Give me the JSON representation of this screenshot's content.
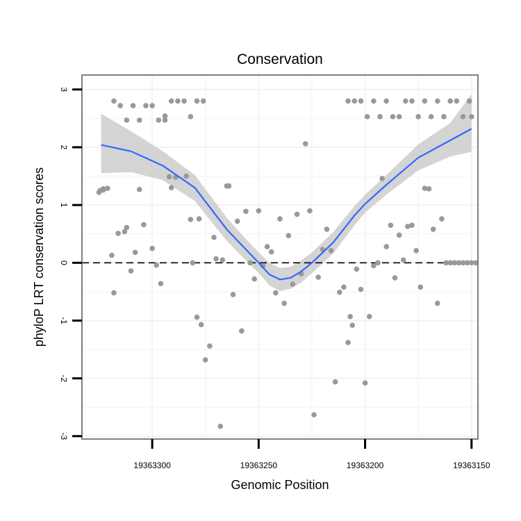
{
  "chart_data": {
    "type": "scatter",
    "title": "Conservation",
    "xlabel": "Genomic Position",
    "ylabel": "phyloP LRT conservation scores",
    "x_reversed": true,
    "xlim": [
      19363333,
      19363147
    ],
    "ylim": [
      -3.05,
      3.25
    ],
    "xticks": [
      19363300,
      19363250,
      19363200,
      19363150
    ],
    "yticks": [
      -3,
      -2,
      -1,
      0,
      1,
      2,
      3
    ],
    "grid": true,
    "reference_line": {
      "y": 0,
      "style": "dashed",
      "color": "#000000"
    },
    "colors": {
      "points": "#999999",
      "smooth": "#3366FF",
      "ribbon": "#CCCCCC",
      "panel_border": "#7F7F7F",
      "grid": "#F2F2F2"
    },
    "series": [
      {
        "name": "scores",
        "kind": "points",
        "x": [
          19363324.5,
          19363325,
          19363323,
          19363321,
          19363323,
          19363318,
          19363319,
          19363316,
          19363312,
          19363313,
          19363310,
          19363308,
          19363306,
          19363304,
          19363300,
          19363298,
          19363296,
          19363294,
          19363292,
          19363291,
          19363289,
          19363284,
          19363282,
          19363281,
          19363279,
          19363278,
          19363277,
          19363275,
          19363273,
          19363271,
          19363270,
          19363268,
          19363267,
          19363265,
          19363264,
          19363262,
          19363260,
          19363258,
          19363256,
          19363254,
          19363252,
          19363250,
          19363248,
          19363246,
          19363244,
          19363242,
          19363240,
          19363238,
          19363236,
          19363234,
          19363232,
          19363230,
          19363228,
          19363226,
          19363224,
          19363222,
          19363220,
          19363218,
          19363216,
          19363214,
          19363212,
          19363210,
          19363208,
          19363207,
          19363206,
          19363204,
          19363202,
          19363200,
          19363198,
          19363196,
          19363194,
          19363192,
          19363190,
          19363188,
          19363186,
          19363184,
          19363182,
          19363180,
          19363178,
          19363176,
          19363174,
          19363172,
          19363170,
          19363168,
          19363166,
          19363164,
          19363162,
          19363160,
          19363158,
          19363156,
          19363154,
          19363152,
          19363150,
          19363148,
          19363318,
          19363315,
          19363312,
          19363309,
          19363306,
          19363303,
          19363300,
          19363297,
          19363294,
          19363291,
          19363288,
          19363285,
          19363282,
          19363279,
          19363276,
          19363208,
          19363205,
          19363202,
          19363199,
          19363196,
          19363193,
          19363190,
          19363187,
          19363184,
          19363181,
          19363178,
          19363175,
          19363172,
          19363169,
          19363166,
          19363163,
          19363160,
          19363157,
          19363154,
          19363151,
          19363150
        ],
        "y": [
          1.25,
          1.22,
          1.28,
          1.29,
          1.26,
          -0.52,
          0.13,
          0.51,
          0.61,
          0.54,
          -0.14,
          0.18,
          1.27,
          0.66,
          0.25,
          -0.04,
          -0.36,
          2.54,
          1.49,
          1.3,
          1.48,
          1.5,
          0.75,
          0.0,
          -0.94,
          0.76,
          -1.07,
          -1.68,
          -1.44,
          0.44,
          0.07,
          -2.83,
          0.05,
          1.33,
          1.33,
          -0.55,
          0.72,
          -1.18,
          0.89,
          0.0,
          -0.28,
          0.9,
          -0.05,
          0.28,
          0.19,
          -0.52,
          0.76,
          -0.7,
          0.47,
          -0.37,
          0.84,
          -0.19,
          2.06,
          0.9,
          -2.63,
          -0.25,
          0.23,
          0.58,
          0.21,
          -2.06,
          -0.51,
          -0.42,
          -1.38,
          -0.93,
          -1.08,
          -0.11,
          -0.46,
          -2.08,
          -0.93,
          -0.05,
          0.0,
          1.46,
          0.28,
          0.65,
          -0.26,
          0.48,
          0.05,
          0.63,
          0.65,
          0.21,
          -0.42,
          1.29,
          1.28,
          0.58,
          -0.7,
          0.76,
          0.0,
          0.0,
          0.0,
          0.0,
          0.0,
          0.0,
          0.0,
          0.0,
          2.8,
          2.72,
          2.47,
          2.72,
          2.47,
          2.72,
          2.72,
          2.47,
          2.47,
          2.8,
          2.8,
          2.8,
          2.53,
          2.8,
          2.8,
          2.8,
          2.8,
          2.8,
          2.53,
          2.8,
          2.53,
          2.8,
          2.53,
          2.53,
          2.8,
          2.8,
          2.53,
          2.8,
          2.53,
          2.8,
          2.53,
          2.8,
          2.8,
          2.53,
          2.8,
          2.53
        ]
      },
      {
        "name": "loess fit",
        "kind": "smooth",
        "x": [
          19363324,
          19363310,
          19363295,
          19363280,
          19363265,
          19363257,
          19363250,
          19363245,
          19363240,
          19363235,
          19363230,
          19363225,
          19363215,
          19363205,
          19363200,
          19363190,
          19363175,
          19363160,
          19363150
        ],
        "y": [
          2.04,
          1.93,
          1.68,
          1.3,
          0.58,
          0.27,
          0.0,
          -0.2,
          -0.29,
          -0.26,
          -0.15,
          0.0,
          0.35,
          0.82,
          1.02,
          1.35,
          1.82,
          2.12,
          2.32
        ],
        "ymin": [
          1.55,
          1.57,
          1.43,
          1.07,
          0.38,
          0.08,
          -0.18,
          -0.39,
          -0.49,
          -0.45,
          -0.34,
          -0.18,
          0.16,
          0.65,
          0.87,
          1.18,
          1.6,
          1.84,
          1.92
        ],
        "ymax": [
          2.58,
          2.28,
          1.93,
          1.52,
          0.78,
          0.45,
          0.18,
          0.0,
          -0.09,
          -0.07,
          0.04,
          0.18,
          0.53,
          0.98,
          1.18,
          1.52,
          2.05,
          2.42,
          2.92
        ]
      }
    ]
  }
}
